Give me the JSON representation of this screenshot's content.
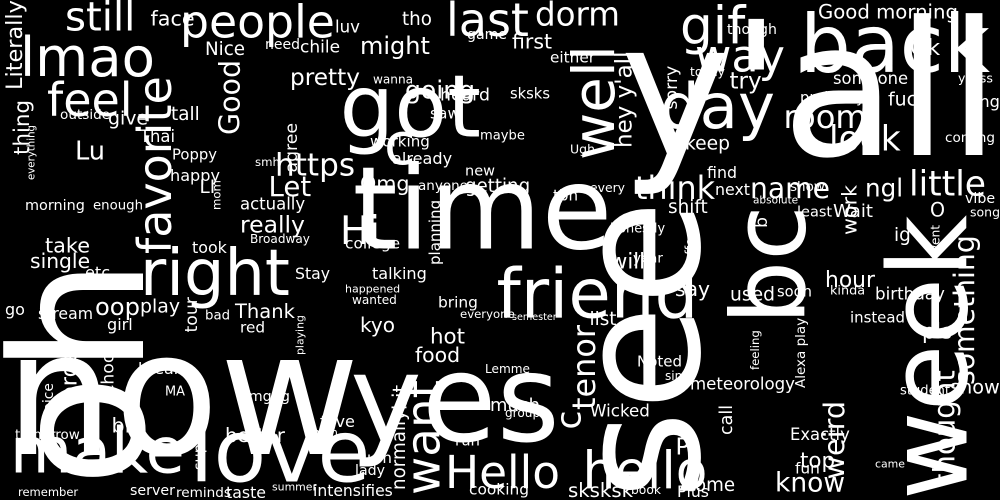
{
  "background_color": "#000000",
  "text_color": "#ffffff",
  "words": [
    "y'all",
    "oh",
    "now",
    "yes",
    "week",
    "see",
    "time",
    "bc",
    "back",
    "got",
    "friend",
    "make",
    "love",
    "right",
    "people",
    "lmao",
    "feel",
    "day",
    "still",
    "last",
    "gif",
    "way",
    "dorm",
    "well",
    "hello",
    "Hello",
    "want",
    "favorite",
    "Good morning",
    "Good",
    "room",
    "look",
    "work",
    "might",
    "going",
    "pretty",
    "tenor",
    "c",
    "name",
    "little",
    "ngl",
    "think",
    "getting",
    "https",
    "Let",
    "really",
    "Hi",
    "Thank",
    "play",
    "oop",
    "single",
    "take",
    "hour",
    "something",
    "thought",
    "snow",
    "know",
    "weird",
    "top",
    "Exactly",
    "meteorology",
    "much",
    "c",
    "Wicked",
    "come",
    "order",
    "hot",
    "food",
    "kyo",
    "happened",
    "talking",
    "Stay",
    "will",
    "say",
    "used",
    "kinda",
    "birthday",
    "Wait",
    "O",
    "fuck",
    "long",
    "someone",
    "probably",
    "Ok",
    "Lu",
    "thing",
    "happy",
    "Omg",
    "heard",
    "working",
    "keep",
    "hey y'all",
    "saw",
    "maybe",
    "new",
    "anyone",
    "already",
    "Nice",
    "face",
    "luv",
    "tho",
    "though",
    "need",
    "chile",
    "game",
    "first",
    "either",
    "wanna",
    "sksks",
    "today",
    "try",
    "sorry",
    "yesss",
    "coming",
    "Literally",
    "outside",
    "give",
    "tall",
    "Thai",
    "Poppy",
    "everything",
    "smh",
    "agree",
    "actually",
    "LI",
    "mom",
    "enough",
    "morning",
    "took",
    "Broadway",
    "etc",
    "go",
    "stream",
    "girl",
    "bad",
    "red",
    "tour",
    "playing",
    "wanted",
    "college",
    "planning",
    "honestly",
    "coffee",
    "year",
    "shift",
    "every",
    "tbh",
    "next",
    "absolute",
    "show",
    "least",
    "vibe",
    "song",
    "ig",
    "went",
    "b",
    "find",
    "Ugh",
    "semester",
    "list",
    "bring",
    "everyone",
    "soon",
    "instead",
    "pls",
    "Alexa play",
    "feeling",
    "Noted",
    "sing",
    "Lemme",
    "student",
    "call",
    "group",
    "bit",
    "break",
    "school",
    "MA",
    "choice",
    "omggg",
    "fave",
    "men",
    "big",
    "tomorrow",
    "better",
    "supremacy",
    "normally",
    "um",
    "run",
    "lady",
    "P",
    "remember",
    "server",
    "reminds",
    "taste",
    "summer",
    "intensifies",
    "cooking",
    "sksksk",
    "book",
    "Plus",
    "fun",
    "came"
  ]
}
